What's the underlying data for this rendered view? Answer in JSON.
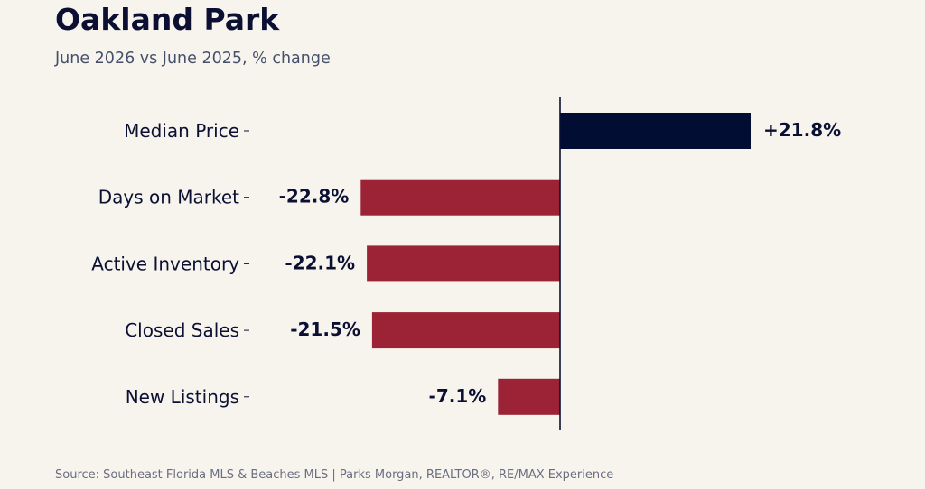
{
  "title": "Oakland Park",
  "subtitle": "June 2026 vs June 2025, % change",
  "footer": "Source: Southeast Florida MLS & Beaches MLS  |  Parks Morgan, REALTOR®, RE/MAX Experience",
  "colors": {
    "background": "#f7f4ee",
    "positive": "#020d33",
    "negative": "#9b2335",
    "text": "#0b1033"
  },
  "chart_data": {
    "type": "bar",
    "orientation": "horizontal",
    "categories": [
      "Median Price",
      "Days on Market",
      "Active Inventory",
      "Closed Sales",
      "New Listings"
    ],
    "values": [
      21.8,
      -22.8,
      -22.1,
      -21.5,
      -7.1
    ],
    "data_labels": [
      "+21.8%",
      "-22.8%",
      "-22.1%",
      "-21.5%",
      "-7.1%"
    ],
    "title": "Oakland Park",
    "subtitle": "June 2026 vs June 2025, % change",
    "xlim": [
      -30,
      40
    ],
    "grid": false,
    "legend": "none"
  }
}
